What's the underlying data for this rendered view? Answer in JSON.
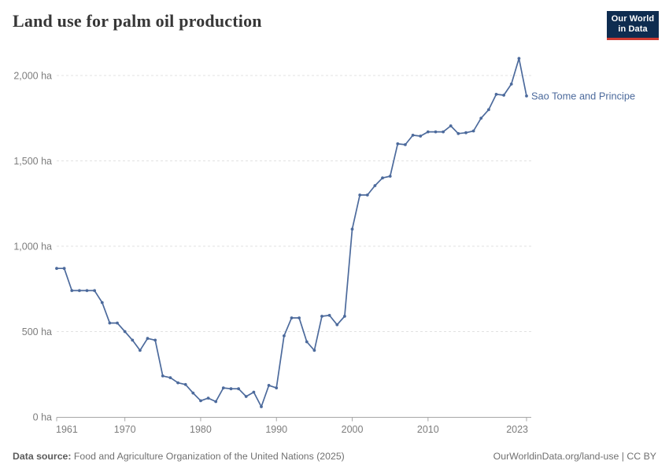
{
  "header": {
    "title": "Land use for palm oil production",
    "logo": {
      "line1": "Our World",
      "line2": "in Data"
    }
  },
  "chart_data": {
    "type": "line",
    "title": "Land use for palm oil production",
    "entity": "Sao Tome and Principe",
    "unit": "ha",
    "line_color": "#4C6A9C",
    "grid": true,
    "legend_position": "end-of-line-label",
    "xlim": [
      1961,
      2023
    ],
    "ylim": [
      0,
      2100
    ],
    "x_ticks": [
      1961,
      1970,
      1980,
      1990,
      2000,
      2010,
      2023
    ],
    "y_ticks": [
      0,
      500,
      1000,
      1500,
      2000
    ],
    "y_tick_labels": [
      "0 ha",
      "500 ha",
      "1,000 ha",
      "1,500 ha",
      "2,000 ha"
    ],
    "years": [
      1961,
      1962,
      1963,
      1964,
      1965,
      1966,
      1967,
      1968,
      1969,
      1970,
      1971,
      1972,
      1973,
      1974,
      1975,
      1976,
      1977,
      1978,
      1979,
      1980,
      1981,
      1982,
      1983,
      1984,
      1985,
      1986,
      1987,
      1988,
      1989,
      1990,
      1991,
      1992,
      1993,
      1994,
      1995,
      1996,
      1997,
      1998,
      1999,
      2000,
      2001,
      2002,
      2003,
      2004,
      2005,
      2006,
      2007,
      2008,
      2009,
      2010,
      2011,
      2012,
      2013,
      2014,
      2015,
      2016,
      2017,
      2018,
      2019,
      2020,
      2021,
      2022,
      2023
    ],
    "values": [
      870,
      870,
      740,
      740,
      740,
      740,
      670,
      550,
      550,
      500,
      450,
      390,
      460,
      450,
      240,
      230,
      200,
      190,
      140,
      95,
      110,
      90,
      170,
      165,
      165,
      120,
      145,
      60,
      185,
      170,
      475,
      580,
      580,
      440,
      390,
      590,
      595,
      540,
      590,
      1100,
      1300,
      1300,
      1355,
      1400,
      1410,
      1600,
      1595,
      1650,
      1645,
      1670,
      1670,
      1670,
      1705,
      1660,
      1665,
      1675,
      1750,
      1800,
      1890,
      1885,
      1950,
      2100,
      1880
    ]
  },
  "footer": {
    "source_label": "Data source:",
    "source_text": " Food and Agriculture Organization of the United Nations (2025)",
    "credit": "OurWorldinData.org/land-use | CC BY"
  }
}
